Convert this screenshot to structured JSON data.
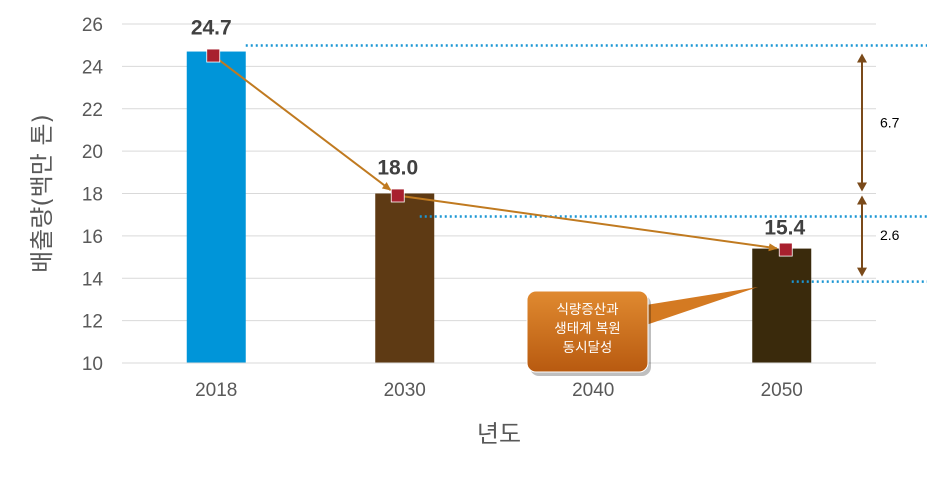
{
  "chart_data": {
    "type": "bar",
    "categories": [
      "2018",
      "2030",
      "2040",
      "2050"
    ],
    "values": [
      24.7,
      18.0,
      null,
      15.4
    ],
    "bar_colors": [
      "#0095D9",
      "#5E3A14",
      null,
      "#3A2A0C"
    ],
    "data_labels": [
      "24.7",
      "18.0",
      "",
      "15.4"
    ],
    "xlabel": "년도",
    "ylabel": "배출량(백만 톤)",
    "ylim": [
      10,
      26
    ],
    "yticks": [
      10,
      12,
      14,
      16,
      18,
      20,
      22,
      24,
      26
    ],
    "grid": true,
    "trend_line": {
      "color": "#C07A20",
      "marker_color": "#A8202E",
      "categories": [
        "2018",
        "2030",
        "2050"
      ]
    },
    "differences": [
      {
        "label": "6.7",
        "from": 24.7,
        "to": 18.0
      },
      {
        "label": "2.6",
        "from": 18.0,
        "to": 15.4
      }
    ],
    "reference_line_color": "#1A96D4",
    "callout": {
      "lines": [
        "식량증산과",
        "생태계 복원",
        "동시달성"
      ],
      "color": "#C96A18"
    }
  }
}
